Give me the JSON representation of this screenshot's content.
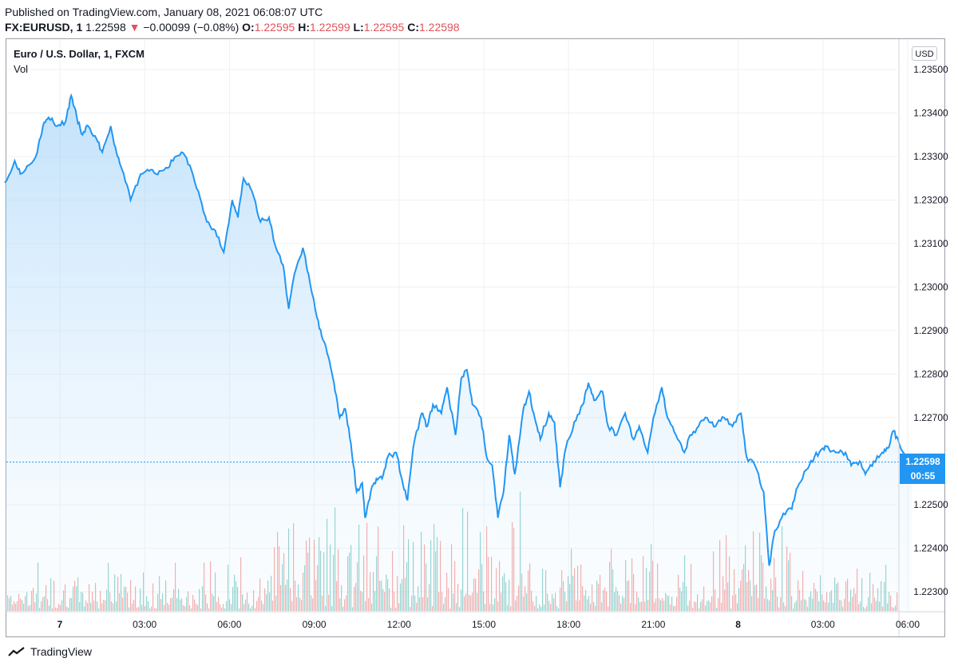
{
  "header": {
    "published": "Published on TradingView.com, January 08, 2021 06:08:07 UTC",
    "symbol": "FX:EURUSD, 1",
    "last": "1.22598",
    "arrow": "▼",
    "change": "−0.00099 (−0.08%)",
    "o_label": "O:",
    "o_value": "1.22595",
    "h_label": "H:",
    "h_value": "1.22599",
    "l_label": "L:",
    "l_value": "1.22595",
    "c_label": "C:",
    "c_value": "1.22598"
  },
  "chart_title": "Euro / U.S. Dollar, 1, FXCM",
  "volume_label": "Vol",
  "currency_badge": "USD",
  "price_tag": {
    "value": "1.22598",
    "countdown": "00:55"
  },
  "footer": {
    "brand": "TradingView"
  },
  "colors": {
    "line": "#2196f3",
    "fill": "#bbdefb",
    "vol_up": "#26a69a",
    "vol_down": "#ef5350",
    "tag": "#2196f3",
    "grid": "#eef0f3"
  },
  "chart_data": {
    "type": "area",
    "title": "Euro / U.S. Dollar, 1, FXCM",
    "ylim": [
      1.2225,
      1.2355
    ],
    "y_ticks": [
      "1.23500",
      "1.23400",
      "1.23300",
      "1.23200",
      "1.23100",
      "1.23000",
      "1.22900",
      "1.22800",
      "1.22700",
      "1.22500",
      "1.22400",
      "1.22300"
    ],
    "x_ticks": [
      {
        "label": "7",
        "hour": 0,
        "bold": true
      },
      {
        "label": "03:00",
        "hour": 3
      },
      {
        "label": "06:00",
        "hour": 6
      },
      {
        "label": "09:00",
        "hour": 9
      },
      {
        "label": "12:00",
        "hour": 12
      },
      {
        "label": "15:00",
        "hour": 15
      },
      {
        "label": "18:00",
        "hour": 18
      },
      {
        "label": "21:00",
        "hour": 21
      },
      {
        "label": "8",
        "hour": 24,
        "bold": true
      },
      {
        "label": "03:00",
        "hour": 27
      },
      {
        "label": "06:00",
        "hour": 30
      }
    ],
    "x_range_hours": [
      -1.95,
      30.15
    ],
    "last_price": 1.22598,
    "series": [
      {
        "name": "EURUSD",
        "points": [
          [
            -1.95,
            1.2324
          ],
          [
            -1.6,
            1.2329
          ],
          [
            -1.4,
            1.2326
          ],
          [
            -1.1,
            1.2328
          ],
          [
            -0.8,
            1.2331
          ],
          [
            -0.6,
            1.2337
          ],
          [
            -0.4,
            1.2339
          ],
          [
            -0.1,
            1.2337
          ],
          [
            0.2,
            1.2338
          ],
          [
            0.4,
            1.2344
          ],
          [
            0.6,
            1.2339
          ],
          [
            0.8,
            1.2335
          ],
          [
            1.0,
            1.2337
          ],
          [
            1.3,
            1.2334
          ],
          [
            1.5,
            1.2331
          ],
          [
            1.8,
            1.2337
          ],
          [
            2.0,
            1.2331
          ],
          [
            2.2,
            1.2327
          ],
          [
            2.5,
            1.232
          ],
          [
            2.8,
            1.2325
          ],
          [
            3.1,
            1.2327
          ],
          [
            3.4,
            1.2326
          ],
          [
            3.7,
            1.2327
          ],
          [
            4.0,
            1.2329
          ],
          [
            4.3,
            1.2331
          ],
          [
            4.6,
            1.2328
          ],
          [
            4.9,
            1.2322
          ],
          [
            5.2,
            1.2315
          ],
          [
            5.5,
            1.2313
          ],
          [
            5.8,
            1.2308
          ],
          [
            6.1,
            1.232
          ],
          [
            6.3,
            1.2316
          ],
          [
            6.5,
            1.2325
          ],
          [
            6.8,
            1.2322
          ],
          [
            7.1,
            1.2315
          ],
          [
            7.4,
            1.2316
          ],
          [
            7.6,
            1.231
          ],
          [
            7.9,
            1.2305
          ],
          [
            8.1,
            1.2295
          ],
          [
            8.3,
            1.2303
          ],
          [
            8.6,
            1.2309
          ],
          [
            8.8,
            1.2303
          ],
          [
            9.1,
            1.2293
          ],
          [
            9.3,
            1.2288
          ],
          [
            9.5,
            1.2284
          ],
          [
            9.7,
            1.2278
          ],
          [
            9.9,
            1.227
          ],
          [
            10.1,
            1.2272
          ],
          [
            10.3,
            1.2264
          ],
          [
            10.5,
            1.2253
          ],
          [
            10.7,
            1.2255
          ],
          [
            10.8,
            1.2247
          ],
          [
            11.0,
            1.2253
          ],
          [
            11.2,
            1.2256
          ],
          [
            11.4,
            1.2256
          ],
          [
            11.6,
            1.2261
          ],
          [
            11.9,
            1.2262
          ],
          [
            12.1,
            1.2256
          ],
          [
            12.3,
            1.2251
          ],
          [
            12.5,
            1.2263
          ],
          [
            12.8,
            1.2271
          ],
          [
            13.0,
            1.2268
          ],
          [
            13.2,
            1.2273
          ],
          [
            13.5,
            1.2271
          ],
          [
            13.7,
            1.2277
          ],
          [
            14.0,
            1.2266
          ],
          [
            14.2,
            1.2279
          ],
          [
            14.4,
            1.2281
          ],
          [
            14.6,
            1.2273
          ],
          [
            14.9,
            1.227
          ],
          [
            15.1,
            1.2261
          ],
          [
            15.3,
            1.2259
          ],
          [
            15.5,
            1.2247
          ],
          [
            15.7,
            1.2253
          ],
          [
            15.9,
            1.2266
          ],
          [
            16.1,
            1.2257
          ],
          [
            16.4,
            1.2272
          ],
          [
            16.6,
            1.2276
          ],
          [
            16.8,
            1.227
          ],
          [
            17.0,
            1.2265
          ],
          [
            17.3,
            1.2271
          ],
          [
            17.5,
            1.2269
          ],
          [
            17.7,
            1.2254
          ],
          [
            17.9,
            1.2263
          ],
          [
            18.2,
            1.2269
          ],
          [
            18.5,
            1.2273
          ],
          [
            18.7,
            1.2278
          ],
          [
            18.9,
            1.2274
          ],
          [
            19.2,
            1.2276
          ],
          [
            19.4,
            1.2268
          ],
          [
            19.7,
            1.2266
          ],
          [
            20.0,
            1.2271
          ],
          [
            20.3,
            1.2265
          ],
          [
            20.5,
            1.2268
          ],
          [
            20.8,
            1.2262
          ],
          [
            21.0,
            1.227
          ],
          [
            21.3,
            1.2277
          ],
          [
            21.5,
            1.227
          ],
          [
            21.8,
            1.2266
          ],
          [
            22.1,
            1.2262
          ],
          [
            22.3,
            1.2266
          ],
          [
            22.6,
            1.2268
          ],
          [
            22.9,
            1.227
          ],
          [
            23.2,
            1.2268
          ],
          [
            23.5,
            1.227
          ],
          [
            23.8,
            1.2268
          ],
          [
            24.1,
            1.2271
          ],
          [
            24.3,
            1.2261
          ],
          [
            24.6,
            1.2259
          ],
          [
            24.9,
            1.2253
          ],
          [
            25.1,
            1.2236
          ],
          [
            25.3,
            1.2244
          ],
          [
            25.6,
            1.2248
          ],
          [
            25.9,
            1.2249
          ],
          [
            26.1,
            1.2254
          ],
          [
            26.4,
            1.2258
          ],
          [
            26.7,
            1.2261
          ],
          [
            27.0,
            1.2263
          ],
          [
            27.2,
            1.2263
          ],
          [
            27.5,
            1.2262
          ],
          [
            27.8,
            1.2262
          ],
          [
            28.0,
            1.2259
          ],
          [
            28.3,
            1.226
          ],
          [
            28.5,
            1.2257
          ],
          [
            28.8,
            1.226
          ],
          [
            29.1,
            1.2262
          ],
          [
            29.3,
            1.2263
          ],
          [
            29.5,
            1.2267
          ],
          [
            29.7,
            1.2264
          ],
          [
            30.0,
            1.226
          ],
          [
            30.15,
            1.22598
          ]
        ]
      }
    ],
    "volume": {
      "label": "Vol",
      "shown": true
    }
  }
}
